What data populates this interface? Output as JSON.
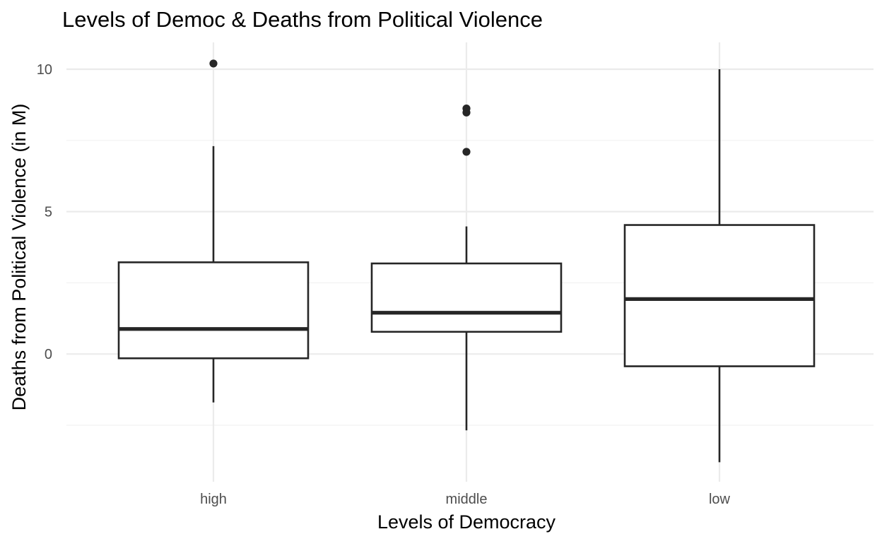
{
  "chart_data": {
    "type": "boxplot",
    "title": "Levels of Democ & Deaths from Political Violence",
    "xlabel": "Levels of Democracy",
    "ylabel": "Deaths from Political Violence (in M)",
    "categories": [
      "high",
      "middle",
      "low"
    ],
    "ylim": [
      -4.4,
      10.9
    ],
    "y_major_ticks": [
      0,
      5,
      10
    ],
    "y_tick_labels": [
      "0",
      "5",
      "10"
    ],
    "y_minor_ticks": [
      -2.5,
      2.5,
      7.5
    ],
    "grid": true,
    "boxes": [
      {
        "category": "high",
        "whisker_low": -1.7,
        "q1": -0.15,
        "median": 0.88,
        "q3": 3.22,
        "whisker_high": 7.3,
        "outliers": [
          10.2
        ]
      },
      {
        "category": "middle",
        "whisker_low": -2.68,
        "q1": 0.78,
        "median": 1.45,
        "q3": 3.18,
        "whisker_high": 4.48,
        "outliers": [
          8.62,
          8.48,
          7.1
        ]
      },
      {
        "category": "low",
        "whisker_low": -3.8,
        "q1": -0.43,
        "median": 1.93,
        "q3": 4.53,
        "whisker_high": 10.0,
        "outliers": []
      }
    ],
    "colors": {
      "box_line": "#262626",
      "outlier": "#262626",
      "grid_major": "#ebebeb",
      "grid_minor": "#f2f2f2",
      "axis_text": "#4d4d4d",
      "title_text": "#000000"
    }
  }
}
